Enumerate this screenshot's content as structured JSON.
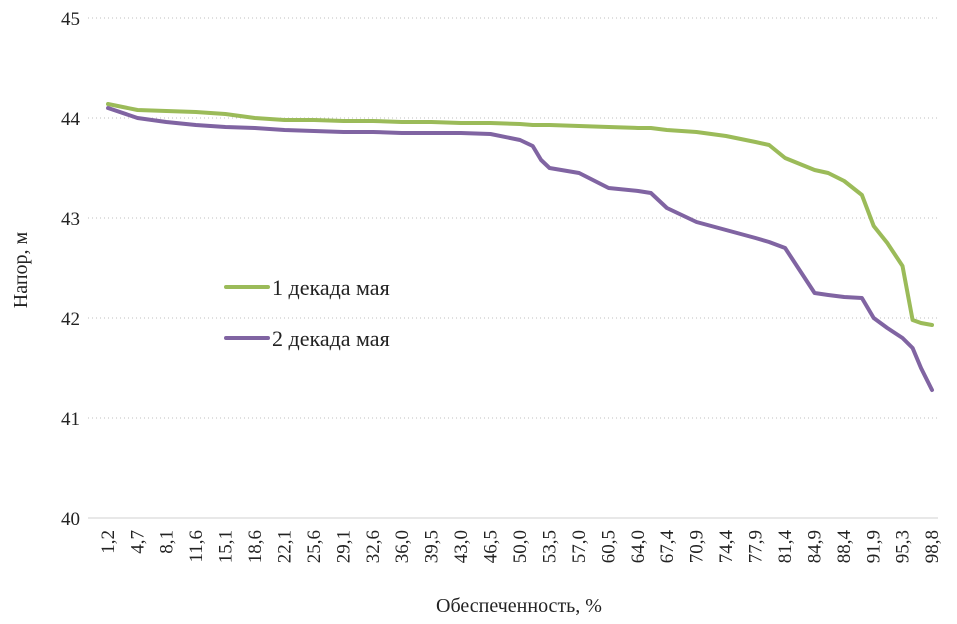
{
  "chart_data": {
    "type": "line",
    "xlabel": "Обеспеченность, %",
    "ylabel": "Напор, м",
    "ylim": [
      40,
      45
    ],
    "yticks": [
      "40",
      "41",
      "42",
      "43",
      "44",
      "45"
    ],
    "grid": "horizontal dotted",
    "legend_position": "center-left",
    "x_tick_labels": [
      "1,2",
      "4,7",
      "8,1",
      "11,6",
      "15,1",
      "18,6",
      "22,1",
      "25,6",
      "29,1",
      "32,6",
      "36,0",
      "39,5",
      "43,0",
      "46,5",
      "50,0",
      "53,5",
      "57,0",
      "60,5",
      "64,0",
      "67,4",
      "70,9",
      "74,4",
      "77,9",
      "81,4",
      "84,9",
      "88,4",
      "91,9",
      "95,3",
      "98,8"
    ],
    "x": [
      1.2,
      4.7,
      8.1,
      11.6,
      15.1,
      18.6,
      22.1,
      25.6,
      29.1,
      32.6,
      36.0,
      39.5,
      43.0,
      46.5,
      50.0,
      51.5,
      52.5,
      53.5,
      57.0,
      60.5,
      64.0,
      65.5,
      67.4,
      70.9,
      74.4,
      77.9,
      79.5,
      81.4,
      84.9,
      86.5,
      88.4,
      90.5,
      91.9,
      93.5,
      95.3,
      96.5,
      97.5,
      98.8
    ],
    "series": [
      {
        "name": "1 декада мая",
        "color": "#9bbb59",
        "values": [
          44.14,
          44.08,
          44.07,
          44.06,
          44.04,
          44.0,
          43.98,
          43.98,
          43.97,
          43.97,
          43.96,
          43.96,
          43.95,
          43.95,
          43.94,
          43.93,
          43.93,
          43.93,
          43.92,
          43.91,
          43.9,
          43.9,
          43.88,
          43.86,
          43.82,
          43.76,
          43.73,
          43.6,
          43.48,
          43.45,
          43.37,
          43.23,
          42.92,
          42.75,
          42.52,
          41.98,
          41.95,
          41.93
        ]
      },
      {
        "name": "2 декада мая",
        "color": "#8064a2",
        "values": [
          44.1,
          44.0,
          43.96,
          43.93,
          43.91,
          43.9,
          43.88,
          43.87,
          43.86,
          43.86,
          43.85,
          43.85,
          43.85,
          43.84,
          43.78,
          43.72,
          43.58,
          43.5,
          43.45,
          43.3,
          43.27,
          43.25,
          43.1,
          42.96,
          42.88,
          42.8,
          42.76,
          42.7,
          42.25,
          42.23,
          42.21,
          42.2,
          42.0,
          41.9,
          41.8,
          41.7,
          41.5,
          41.28
        ]
      }
    ]
  }
}
